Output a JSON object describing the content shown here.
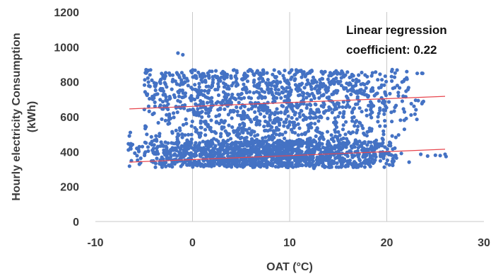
{
  "chart_data": {
    "type": "scatter",
    "xlabel": "OAT (°C)",
    "ylabel_lines": [
      "Hourly electricity Consumption",
      "(kWh)"
    ],
    "xlim": [
      -10,
      30
    ],
    "ylim": [
      0,
      1200
    ],
    "x_ticks": [
      -10,
      0,
      10,
      20,
      30
    ],
    "y_ticks": [
      0,
      200,
      400,
      600,
      800,
      1000,
      1200
    ],
    "grid": {
      "vertical": true,
      "horizontal": false
    },
    "annotation": [
      "Linear regression",
      "coefficient: 0.22"
    ],
    "colors": {
      "points": "#4472c4",
      "regression": "#e8464e",
      "grid": "#c9c9c9"
    },
    "regression_lines": [
      {
        "x": [
          -6.5,
          26
        ],
        "y": [
          645,
          717
        ]
      },
      {
        "x": [
          -6.5,
          26
        ],
        "y": [
          340,
          414
        ]
      }
    ],
    "clusters": [
      {
        "x_range": [
          -6.5,
          21
        ],
        "y_range": [
          310,
          460
        ],
        "count": 1400,
        "density_center": 8
      },
      {
        "x_range": [
          -5.5,
          22
        ],
        "y_range": [
          460,
          620
        ],
        "count": 380,
        "density_center": 8
      },
      {
        "x_range": [
          -5,
          24
        ],
        "y_range": [
          620,
          870
        ],
        "count": 900,
        "density_center": 7
      }
    ],
    "points": [
      [
        -1.5,
        965
      ],
      [
        -1.0,
        955
      ],
      [
        -6.6,
        410
      ],
      [
        -6.6,
        445
      ],
      [
        -6.5,
        490
      ],
      [
        -6.4,
        510
      ],
      [
        20.2,
        395
      ],
      [
        20.5,
        380
      ],
      [
        21.5,
        390
      ],
      [
        22.3,
        340
      ],
      [
        23.5,
        385
      ],
      [
        24.2,
        375
      ],
      [
        25.0,
        380
      ],
      [
        25.5,
        378
      ],
      [
        26.0,
        385
      ],
      [
        26.1,
        372
      ],
      [
        22.0,
        590
      ],
      [
        22.5,
        610
      ],
      [
        23.0,
        640
      ],
      [
        22.8,
        660
      ],
      [
        21.2,
        720
      ],
      [
        23.1,
        585
      ],
      [
        22.9,
        615
      ],
      [
        21.8,
        580
      ],
      [
        12.5,
        305
      ],
      [
        14.0,
        312
      ],
      [
        16.0,
        318
      ],
      [
        17.0,
        322
      ],
      [
        -4.2,
        345
      ],
      [
        -3.0,
        330
      ]
    ]
  }
}
